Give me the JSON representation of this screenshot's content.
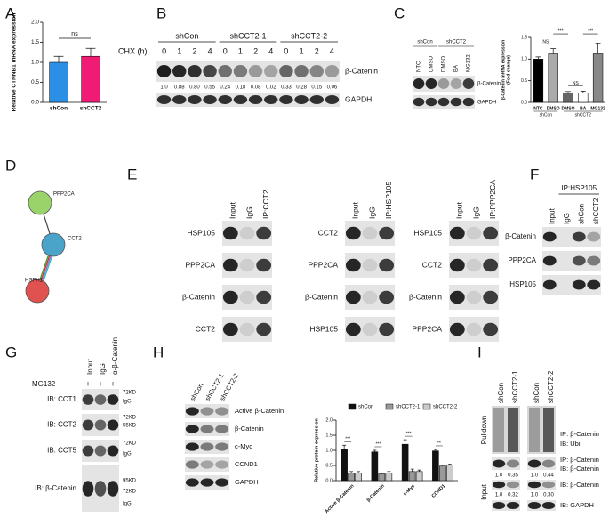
{
  "chart_data": [
    {
      "type": "bar",
      "ylabel": [
        "Relative CTNNB1 mRNA expression"
      ],
      "categories": [
        "shCon",
        "shCCT2"
      ],
      "values": [
        1.0,
        1.15
      ],
      "errors": [
        0.15,
        0.2
      ],
      "colors": [
        "#2b8fe6",
        "#ef1b74"
      ],
      "ylim": [
        0,
        2
      ],
      "yticks": [
        {
          "value": 0,
          "label": "0.0"
        },
        {
          "value": 0.5,
          "label": "0.5"
        },
        {
          "value": 1,
          "label": "1.0"
        },
        {
          "value": 1.5,
          "label": "1.5"
        },
        {
          "value": 2,
          "label": "2.0"
        }
      ],
      "annotations": [
        "ns"
      ]
    },
    {
      "type": "bar",
      "ylabel": [
        "β-Catenin mRNA expression",
        "(Fold change)"
      ],
      "categories": [
        "NTC",
        "DMSO",
        "DMSO",
        "BA",
        "MG132"
      ],
      "groups": [
        "shCon",
        "shCCT2"
      ],
      "values": [
        1.0,
        1.12,
        0.22,
        0.22,
        1.12
      ],
      "errors": [
        0.05,
        0.12,
        0.03,
        0.04,
        0.25
      ],
      "colors": [
        "#000000",
        "#aaaaaa",
        "#666666",
        "#ffffff",
        "#888888"
      ],
      "ylim": [
        0,
        1.5
      ],
      "yticks": [
        {
          "value": 0,
          "label": "0.0"
        },
        {
          "value": 0.5,
          "label": "0.5"
        },
        {
          "value": 1,
          "label": "1.0"
        },
        {
          "value": 1.5,
          "label": "1.5"
        }
      ],
      "annotations": [
        "NS",
        "***",
        "NS",
        "***"
      ]
    },
    {
      "type": "bar",
      "ylabel": [
        "Relative protein expression"
      ],
      "categories": [
        "Active β-Catenin",
        "β-Catenin",
        "c-Myc",
        "CCND1"
      ],
      "series": [
        {
          "name": "shCon",
          "color": "#111111",
          "values": [
            1.02,
            0.95,
            1.2,
            0.98
          ],
          "errors": [
            0.15,
            0.05,
            0.15,
            0.05
          ]
        },
        {
          "name": "shCCT2-1",
          "color": "#999999",
          "values": [
            0.25,
            0.22,
            0.3,
            0.48
          ],
          "errors": [
            0.05,
            0.03,
            0.08,
            0.03
          ]
        },
        {
          "name": "shCCT2-2",
          "color": "#cccccc",
          "values": [
            0.25,
            0.25,
            0.3,
            0.52
          ],
          "errors": [
            0.05,
            0.05,
            0.05,
            0.03
          ]
        }
      ],
      "ylim": [
        0,
        2
      ],
      "yticks": [
        {
          "value": 0,
          "label": "0.0"
        },
        {
          "value": 0.5,
          "label": "0.5"
        },
        {
          "value": 1,
          "label": "1.0"
        },
        {
          "value": 1.5,
          "label": "1.5"
        },
        {
          "value": 2,
          "label": "2.0"
        }
      ],
      "annotations": [
        "***",
        "***",
        "***",
        "**"
      ]
    }
  ],
  "figure": {
    "panel_labels": [
      "A",
      "B",
      "C",
      "D",
      "E",
      "F",
      "G",
      "H",
      "I"
    ],
    "B": {
      "groups": [
        "shCon",
        "shCCT2-1",
        "shCCT2-2"
      ],
      "chx": "CHX (h)",
      "times": [
        "0",
        "1",
        "2",
        "4",
        "0",
        "1",
        "2",
        "4",
        "0",
        "1",
        "2",
        "4"
      ],
      "rows": [
        "β-Catenin",
        "GAPDH"
      ],
      "quant": [
        "1.0",
        "0.88",
        "0.80",
        "0.55",
        "0.24",
        "0.18",
        "0.08",
        "0.02",
        "0.33",
        "0.28",
        "0.15",
        "0.06"
      ]
    },
    "C": {
      "groups": [
        "shCon",
        "shCCT2"
      ],
      "lanes": [
        "NTC",
        "DMSO",
        "DMSO",
        "BA",
        "MG132"
      ],
      "rows": [
        "β-Catenin",
        "GAPDH"
      ]
    },
    "D": {
      "nodes": [
        "PPP2CA",
        "CCT2",
        "HSPH1"
      ]
    },
    "E": {
      "blots": [
        {
          "columns": [
            "Input",
            "IgG",
            "IP:CCT2"
          ],
          "rows": [
            "HSP105",
            "PPP2CA",
            "β-Catenin",
            "CCT2"
          ]
        },
        {
          "columns": [
            "Input",
            "IgG",
            "IP:HSP105"
          ],
          "rows": [
            "CCT2",
            "PPP2CA",
            "β-Catenin",
            "HSP105"
          ]
        },
        {
          "columns": [
            "Input",
            "IgG",
            "IP:PPP2CA"
          ],
          "rows": [
            "HSP105",
            "CCT2",
            "β-Catenin",
            "PPP2CA"
          ]
        }
      ]
    },
    "F": {
      "ip": "IP:HSP105",
      "columns": [
        "Input",
        "IgG",
        "shCon",
        "shCCT2"
      ],
      "rows": [
        "β-Catenin",
        "PPP2CA",
        "HSP105"
      ]
    },
    "G": {
      "treatment": "MG132",
      "signs": [
        "+",
        "+",
        "+"
      ],
      "columns": [
        "Input",
        "IgG",
        "α-β-Catenin"
      ],
      "rows": [
        "IB: CCT1",
        "IB: CCT2",
        "IB: CCT5",
        "IB: β-Catenin"
      ],
      "markers": [
        [
          "72KD",
          "IgG"
        ],
        [
          "72KD",
          "55KD"
        ],
        [
          "72KD",
          "IgG"
        ],
        [
          "95KD",
          "72KD",
          "IgG"
        ]
      ]
    },
    "H": {
      "columns": [
        "shCon",
        "shCCT2-1",
        "shCCT2-2"
      ],
      "rows": [
        "Active β-Catenin",
        "β-Catenin",
        "c-Myc",
        "CCND1",
        "GAPDH"
      ]
    },
    "I": {
      "columns": [
        "shCon",
        "shCCT2-1",
        "shCon",
        "shCCT2-2"
      ],
      "pulldown": "Pulldown",
      "input": "Input",
      "labels": [
        "IP: β-Catenin",
        "IB: Ubi",
        "IP: β-Catenin",
        "IB: β-Catenin",
        "IB: β-Catenin",
        "IB: GAPDH"
      ],
      "quant1": [
        "1.0",
        "0.35",
        "1.0",
        "0.44"
      ],
      "quant2": [
        "1.0",
        "0.32",
        "1.0",
        "0.30"
      ]
    }
  }
}
